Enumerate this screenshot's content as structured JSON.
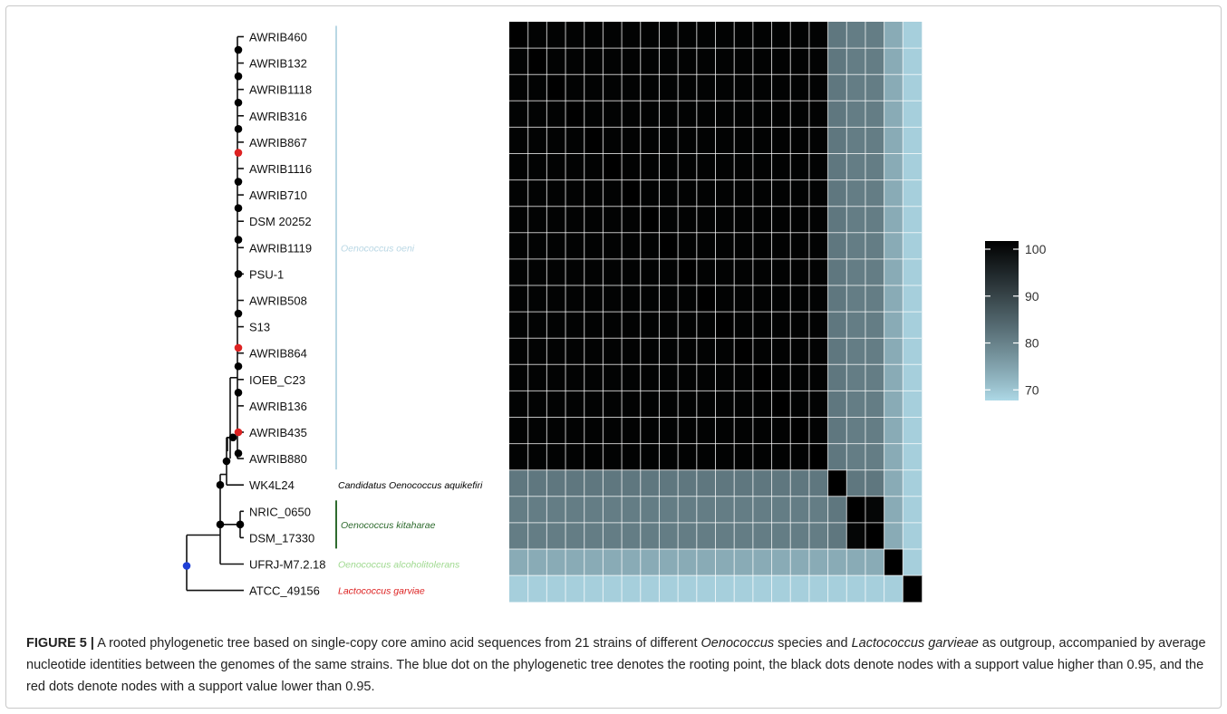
{
  "figure": {
    "label": "FIGURE 5 |",
    "caption_parts": [
      {
        "text": " A rooted phylogenetic tree based on single-copy core amino acid sequences from 21 strains of different ",
        "italic": false
      },
      {
        "text": "Oenococcus",
        "italic": true
      },
      {
        "text": " species and ",
        "italic": false
      },
      {
        "text": "Lactococcus garvieae",
        "italic": true
      },
      {
        "text": " as outgroup, accompanied by average nucleotide identities between the genomes of the same strains. The blue dot on the phylogenetic tree denotes the rooting point, the black dots denote nodes with a support value higher than 0.95, and the red dots denote nodes with a support value lower than 0.95.",
        "italic": false
      }
    ]
  },
  "chart_data": {
    "type": "heatmap",
    "strains": [
      "AWRIB460",
      "AWRIB132",
      "AWRIB1118",
      "AWRIB316",
      "AWRIB867",
      "AWRIB1116",
      "AWRIB710",
      "DSM_20252",
      "AWRIB1119",
      "PSU-1",
      "AWRIB508",
      "S13",
      "AWRIB864",
      "IOEB_C23",
      "AWRIB136",
      "AWRIB435",
      "AWRIB880",
      "WK4L24",
      "NRIC_0650",
      "DSM_17330",
      "UFRJ-M7.2.18",
      "ATCC_49156"
    ],
    "strain_labels": [
      "AWRIB460",
      "AWRIB132",
      "AWRIB1118",
      "AWRIB316",
      "AWRIB867",
      "AWRIB1116",
      "AWRIB710",
      "DSM 20252",
      "AWRIB1119",
      "PSU-1",
      "AWRIB508",
      "S13",
      "AWRIB864",
      "IOEB_C23",
      "AWRIB136",
      "AWRIB435",
      "AWRIB880",
      "WK4L24",
      "NRIC_0650",
      "DSM_17330",
      "UFRJ-M7.2.18",
      "ATCC_49156"
    ],
    "groups": [
      {
        "start": 0,
        "end": 16,
        "text": "Oenococcus oeni",
        "color": "#b9d7e4"
      },
      {
        "start": 17,
        "end": 17,
        "text": "Candidatus Oenococcus aquikefiri",
        "color": "#000000"
      },
      {
        "start": 18,
        "end": 19,
        "text": "Oenococcus kitaharae",
        "color": "#2e6b2e"
      },
      {
        "start": 20,
        "end": 20,
        "text": "Oenococcus alcoholitolerans",
        "color": "#9fd98f"
      },
      {
        "start": 21,
        "end": 21,
        "text": "Lactococcus garviae",
        "color": "#dd2222"
      }
    ],
    "ani_levels": {
      "within_oeni": 99.5,
      "oeni_vs_aquikefiri": 80,
      "oeni_vs_kitaharae": 79,
      "oeni_vs_alcoholitolerans": 72,
      "vs_lactococcus": 67,
      "aquikefiri_vs_kitaharae": 80,
      "aquikefiri_vs_alcoholitolerans": 72,
      "kitaharae_vs_kitaharae": 99,
      "kitaharae_vs_alcoholitolerans": 72,
      "self": 100
    },
    "colorbar": {
      "min": 66,
      "max": 100,
      "ticks": [
        100,
        90,
        80,
        70
      ],
      "low_color": "#add8e6",
      "high_color": "#000000"
    },
    "tree": {
      "nodes": [
        {
          "id": "root",
          "x": 199,
          "y_of": [
            21,
            22
          ],
          "support": "root"
        },
        {
          "id": "ingroup",
          "x": 236,
          "children_y": [
            20,
            19
          ],
          "support": "high"
        }
      ],
      "dot_colors": {
        "root": "#1f3fd6",
        "high": "#000000",
        "low": "#dd2222"
      }
    }
  }
}
